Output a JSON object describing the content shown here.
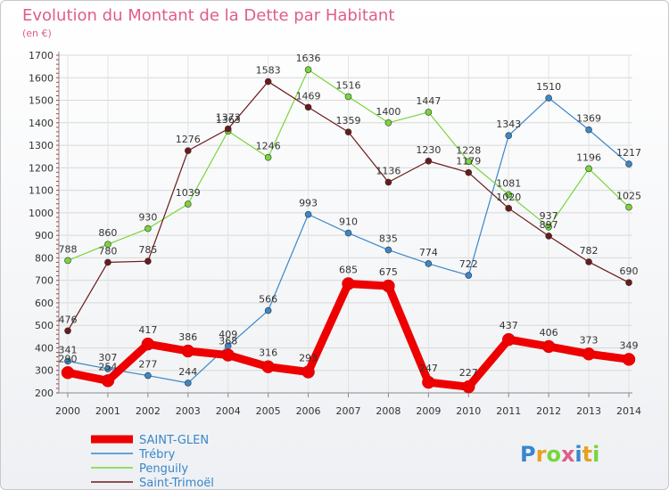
{
  "chart_data": {
    "type": "line",
    "title": "Evolution du Montant de la Dette par Habitant",
    "subtitle": "(en €)",
    "xlabel": "",
    "ylabel": "",
    "categories": [
      "2000",
      "2001",
      "2002",
      "2003",
      "2004",
      "2005",
      "2006",
      "2007",
      "2008",
      "2009",
      "2010",
      "2011",
      "2012",
      "2013",
      "2014"
    ],
    "ylim": [
      200,
      1700
    ],
    "yticks": [
      200,
      300,
      400,
      500,
      600,
      700,
      800,
      900,
      1000,
      1100,
      1200,
      1300,
      1400,
      1500,
      1600,
      1700
    ],
    "grid": true,
    "legend_position": "bottom-left",
    "series": [
      {
        "name": "SAINT-GLEN",
        "color": "#ee0000",
        "values": [
          290,
          254,
          417,
          386,
          368,
          316,
          293,
          685,
          675,
          247,
          227,
          437,
          406,
          373,
          349
        ]
      },
      {
        "name": "Trébry",
        "color": "#3a87c8",
        "values": [
          341,
          307,
          277,
          244,
          409,
          566,
          993,
          910,
          835,
          774,
          722,
          1343,
          1510,
          1369,
          1217
        ]
      },
      {
        "name": "Penguily",
        "color": "#77d63a",
        "values": [
          788,
          860,
          930,
          1039,
          1363,
          1246,
          1636,
          1516,
          1400,
          1447,
          1228,
          1081,
          937,
          1196,
          1025
        ]
      },
      {
        "name": "Saint-Trimoël",
        "color": "#6b1a1a",
        "values": [
          476,
          780,
          785,
          1276,
          1373,
          1583,
          1469,
          1359,
          1136,
          1230,
          1179,
          1020,
          897,
          782,
          690
        ]
      }
    ]
  },
  "logo": {
    "text": "Proxiti",
    "colors": [
      "#3a87c8",
      "#e8a020",
      "#77d63a",
      "#e05c8b",
      "#3a87c8",
      "#e8a020",
      "#77d63a"
    ]
  }
}
